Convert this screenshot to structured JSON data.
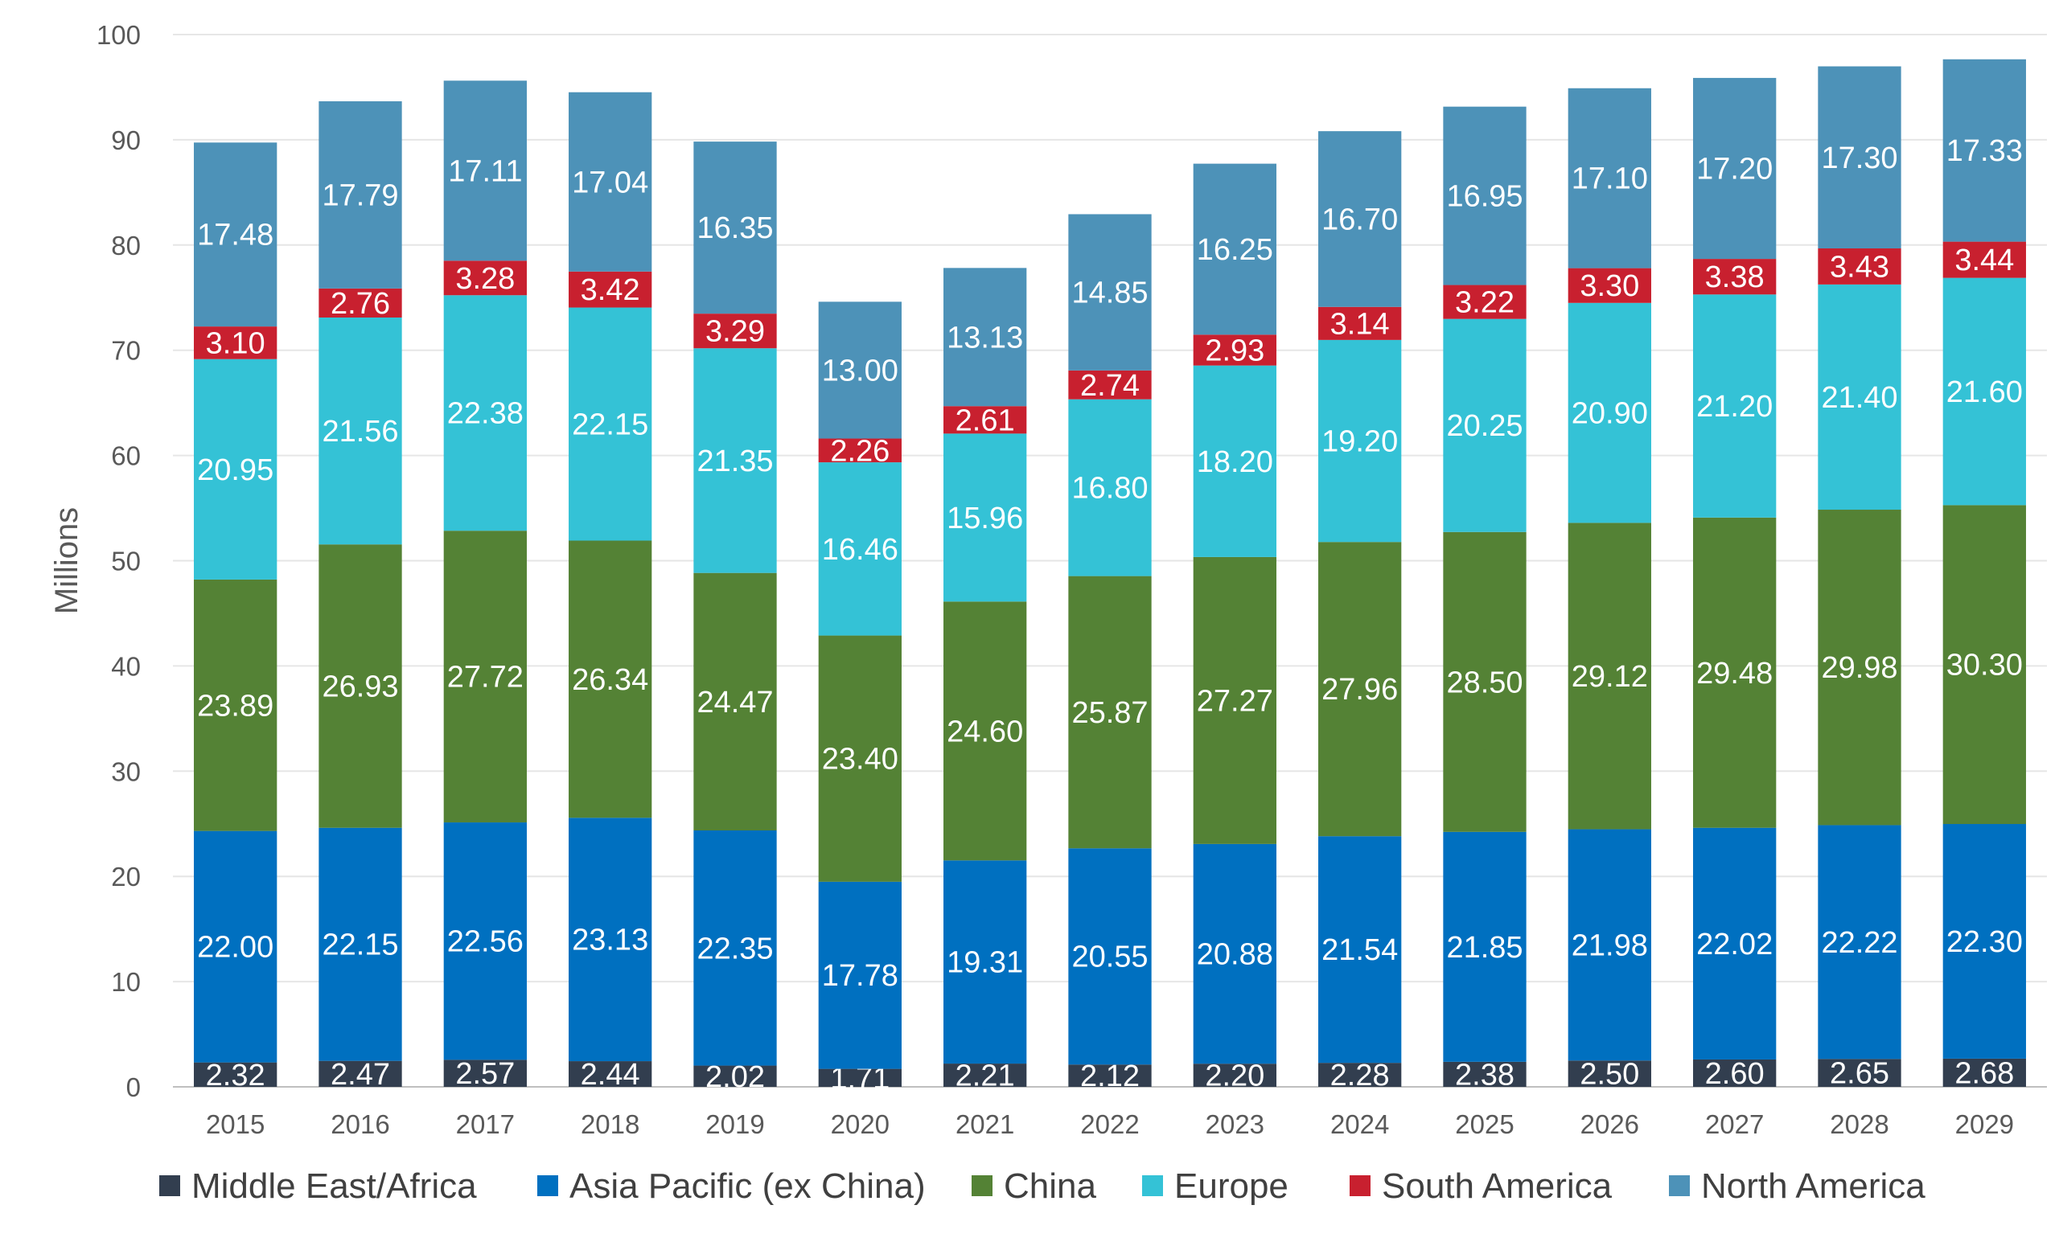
{
  "chart_data": {
    "type": "bar",
    "stacked": true,
    "ylabel": "Millions",
    "xlabel": "",
    "ylim": [
      0,
      100
    ],
    "yticks": [
      0,
      10,
      20,
      30,
      40,
      50,
      60,
      70,
      80,
      90,
      100
    ],
    "grid": true,
    "legend_position": "bottom",
    "categories": [
      "2015",
      "2016",
      "2017",
      "2018",
      "2019",
      "2020",
      "2021",
      "2022",
      "2023",
      "2024",
      "2025",
      "2026",
      "2027",
      "2028",
      "2029"
    ],
    "series": [
      {
        "name": "Middle East/Africa",
        "color": "#323e4f",
        "values": [
          2.32,
          2.47,
          2.57,
          2.44,
          2.02,
          1.71,
          2.21,
          2.12,
          2.2,
          2.28,
          2.38,
          2.5,
          2.6,
          2.65,
          2.68
        ],
        "labels": [
          "2.32",
          "2.47",
          "2.57",
          "2.44",
          "2.02",
          "1.71",
          "2.21",
          "2.12",
          "2.20",
          "2.28",
          "2.38",
          "2.50",
          "2.60",
          "2.65",
          "2.68"
        ]
      },
      {
        "name": "Asia Pacific (ex China)",
        "color": "#0070c0",
        "values": [
          22.0,
          22.15,
          22.56,
          23.13,
          22.35,
          17.78,
          19.31,
          20.55,
          20.88,
          21.54,
          21.85,
          21.98,
          22.02,
          22.22,
          22.3
        ],
        "labels": [
          "22.00",
          "22.15",
          "22.56",
          "23.13",
          "22.35",
          "17.78",
          "19.31",
          "20.55",
          "20.88",
          "21.54",
          "21.85",
          "21.98",
          "22.02",
          "22.22",
          "22.30"
        ]
      },
      {
        "name": "China",
        "color": "#548235",
        "values": [
          23.89,
          26.93,
          27.72,
          26.34,
          24.47,
          23.4,
          24.6,
          25.87,
          27.27,
          27.96,
          28.5,
          29.12,
          29.48,
          29.98,
          30.3
        ],
        "labels": [
          "23.89",
          "26.93",
          "27.72",
          "26.34",
          "24.47",
          "23.40",
          "24.60",
          "25.87",
          "27.27",
          "27.96",
          "28.50",
          "29.12",
          "29.48",
          "29.98",
          "30.30"
        ]
      },
      {
        "name": "Europe",
        "color": "#34c2d6",
        "values": [
          20.95,
          21.56,
          22.38,
          22.15,
          21.35,
          16.46,
          15.96,
          16.8,
          18.2,
          19.2,
          20.25,
          20.9,
          21.2,
          21.4,
          21.6
        ],
        "labels": [
          "20.95",
          "21.56",
          "22.38",
          "22.15",
          "21.35",
          "16.46",
          "15.96",
          "16.80",
          "18.20",
          "19.20",
          "20.25",
          "20.90",
          "21.20",
          "21.40",
          "21.60"
        ]
      },
      {
        "name": "South America",
        "color": "#c8202f",
        "values": [
          3.1,
          2.76,
          3.28,
          3.42,
          3.29,
          2.26,
          2.61,
          2.74,
          2.93,
          3.14,
          3.22,
          3.3,
          3.38,
          3.43,
          3.44
        ],
        "labels": [
          "3.10",
          "2.76",
          "3.28",
          "3.42",
          "3.29",
          "2.26",
          "2.61",
          "2.74",
          "2.93",
          "3.14",
          "3.22",
          "3.30",
          "3.38",
          "3.43",
          "3.44"
        ]
      },
      {
        "name": "North America",
        "color": "#4d92b8",
        "values": [
          17.48,
          17.79,
          17.11,
          17.04,
          16.35,
          13.0,
          13.13,
          14.85,
          16.25,
          16.7,
          16.95,
          17.1,
          17.2,
          17.3,
          17.33
        ],
        "labels": [
          "17.48",
          "17.79",
          "17.11",
          "17.04",
          "16.35",
          "13.00",
          "13.13",
          "14.85",
          "16.25",
          "16.70",
          "16.95",
          "17.10",
          "17.20",
          "17.30",
          "17.33"
        ]
      }
    ]
  }
}
